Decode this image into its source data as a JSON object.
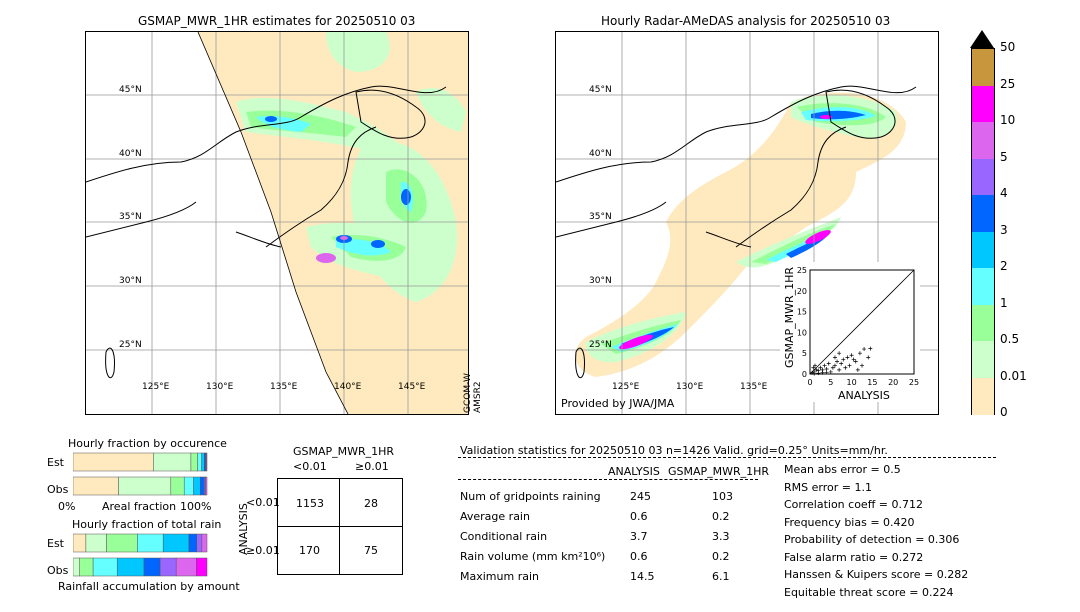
{
  "left_map": {
    "title": "GSMAP_MWR_1HR estimates for 20250510 03",
    "lat_labels": [
      "45°N",
      "40°N",
      "35°N",
      "30°N",
      "25°N"
    ],
    "lon_labels": [
      "125°E",
      "130°E",
      "135°E",
      "140°E",
      "145°E"
    ],
    "sensor_label_1": "GCOM-W",
    "sensor_label_2": "AMSR2"
  },
  "right_map": {
    "title": "Hourly Radar-AMeDAS analysis for 20250510 03",
    "lat_labels": [
      "45°N",
      "40°N",
      "35°N",
      "30°N",
      "25°N"
    ],
    "lon_labels": [
      "125°E",
      "130°E",
      "135°E"
    ],
    "credit": "Provided by JWA/JMA"
  },
  "colorbar": {
    "labels": [
      "50",
      "25",
      "10",
      "5",
      "4",
      "3",
      "2",
      "1",
      "0.5",
      "0.01",
      "0"
    ],
    "colors": [
      "#c8963c",
      "#ff00ff",
      "#dd66ee",
      "#9966ff",
      "#0066ff",
      "#00c8ff",
      "#66ffff",
      "#99ff99",
      "#ccffcc",
      "#ffeabf"
    ]
  },
  "scatter": {
    "xlabel": "ANALYSIS",
    "ylabel": "GSMAP_MWR_1HR",
    "ticks": [
      "0",
      "5",
      "10",
      "15",
      "20",
      "25"
    ]
  },
  "fraction_occurrence": {
    "title": "Hourly fraction by occurence",
    "row_est": "Est",
    "row_obs": "Obs",
    "axis_left": "0%",
    "axis_mid": "Areal fraction",
    "axis_right": "100%"
  },
  "fraction_total": {
    "title": "Hourly fraction of total rain",
    "row_est": "Est",
    "row_obs": "Obs",
    "axis_label": "Rainfall accumulation by amount"
  },
  "contingency": {
    "title": "GSMAP_MWR_1HR",
    "col_lt": "<0.01",
    "col_ge": "≥0.01",
    "row_label": "ANALYSIS",
    "row_lt": "<0.01",
    "row_ge": "≥0.01",
    "cells": [
      "1153",
      "28",
      "170",
      "75"
    ]
  },
  "validation": {
    "header": "Validation statistics for 20250510 03  n=1426 Valid. grid=0.25° Units=mm/hr.",
    "col1": "ANALYSIS",
    "col2": "GSMAP_MWR_1HR",
    "rows": [
      {
        "label": "Num of gridpoints raining",
        "a": "245",
        "g": "103"
      },
      {
        "label": "Average rain",
        "a": "0.6",
        "g": "0.2"
      },
      {
        "label": "Conditional rain",
        "a": "3.7",
        "g": "3.3"
      },
      {
        "label": "Rain volume (mm km²10⁶)",
        "a": "0.6",
        "g": "0.2"
      },
      {
        "label": "Maximum rain",
        "a": "14.5",
        "g": "6.1"
      }
    ],
    "scores": [
      "Mean abs error =    0.5",
      "RMS error =    1.1",
      "Correlation coeff =  0.712",
      "Frequency bias =  0.420",
      "Probability of detection =  0.306",
      "False alarm ratio =  0.272",
      "Hanssen & Kuipers score =  0.282",
      "Equitable threat score =  0.224"
    ]
  },
  "chart_data": [
    {
      "type": "scatter",
      "title": "",
      "xlabel": "ANALYSIS",
      "ylabel": "GSMAP_MWR_1HR",
      "xlim": [
        0,
        25
      ],
      "ylim": [
        0,
        25
      ],
      "series": [
        {
          "points": [
            [
              0.5,
              0.3
            ],
            [
              1,
              0.5
            ],
            [
              1.5,
              1
            ],
            [
              2,
              0.8
            ],
            [
              2.5,
              1.5
            ],
            [
              3,
              1
            ],
            [
              3.5,
              2
            ],
            [
              4,
              1.2
            ],
            [
              4.5,
              2.5
            ],
            [
              5,
              0.5
            ],
            [
              5.5,
              1.5
            ],
            [
              6,
              2
            ],
            [
              6.5,
              3
            ],
            [
              7,
              1
            ],
            [
              7.5,
              2.5
            ],
            [
              8,
              3.5
            ],
            [
              8.5,
              1.5
            ],
            [
              9,
              4
            ],
            [
              9.5,
              2
            ],
            [
              10,
              4.5
            ],
            [
              11,
              3
            ],
            [
              12,
              5
            ],
            [
              13,
              6
            ],
            [
              14,
              4
            ],
            [
              14.5,
              6.1
            ],
            [
              12.5,
              2
            ],
            [
              11.5,
              1
            ],
            [
              10.5,
              3.5
            ],
            [
              6,
              4
            ],
            [
              7,
              5
            ],
            [
              3,
              0.3
            ],
            [
              2,
              0.2
            ],
            [
              1,
              0.1
            ],
            [
              4,
              0.4
            ],
            [
              1.2,
              2
            ],
            [
              0.8,
              1.5
            ]
          ]
        }
      ]
    },
    {
      "type": "bar",
      "title": "Hourly fraction by occurence",
      "categories": [
        "Est",
        "Obs"
      ],
      "series": [
        {
          "name": "0-0.01",
          "values": [
            0.6,
            0.34
          ]
        },
        {
          "name": "0.01-0.5",
          "values": [
            0.28,
            0.39
          ]
        },
        {
          "name": "0.5-1",
          "values": [
            0.05,
            0.1
          ]
        },
        {
          "name": "1-2",
          "values": [
            0.03,
            0.07
          ]
        },
        {
          "name": "2-3",
          "values": [
            0.02,
            0.05
          ]
        },
        {
          "name": "3-4",
          "values": [
            0.01,
            0.03
          ]
        },
        {
          "name": "4-5",
          "values": [
            0.005,
            0.01
          ]
        },
        {
          "name": "5-10",
          "values": [
            0.005,
            0.01
          ]
        }
      ]
    },
    {
      "type": "bar",
      "title": "Hourly fraction of total rain",
      "categories": [
        "Est",
        "Obs"
      ],
      "series": [
        {
          "name": "0-0.01",
          "values": [
            0.05,
            0.0
          ]
        },
        {
          "name": "0.01-0.5",
          "values": [
            0.08,
            0.05
          ]
        },
        {
          "name": "0.5-1",
          "values": [
            0.12,
            0.1
          ]
        },
        {
          "name": "1-2",
          "values": [
            0.1,
            0.18
          ]
        },
        {
          "name": "2-3",
          "values": [
            0.1,
            0.2
          ]
        },
        {
          "name": "3-4",
          "values": [
            0.03,
            0.12
          ]
        },
        {
          "name": "4-5",
          "values": [
            0.02,
            0.12
          ]
        },
        {
          "name": "5-10",
          "values": [
            0.02,
            0.15
          ]
        },
        {
          "name": "10-25",
          "values": [
            0.0,
            0.08
          ]
        }
      ]
    }
  ]
}
